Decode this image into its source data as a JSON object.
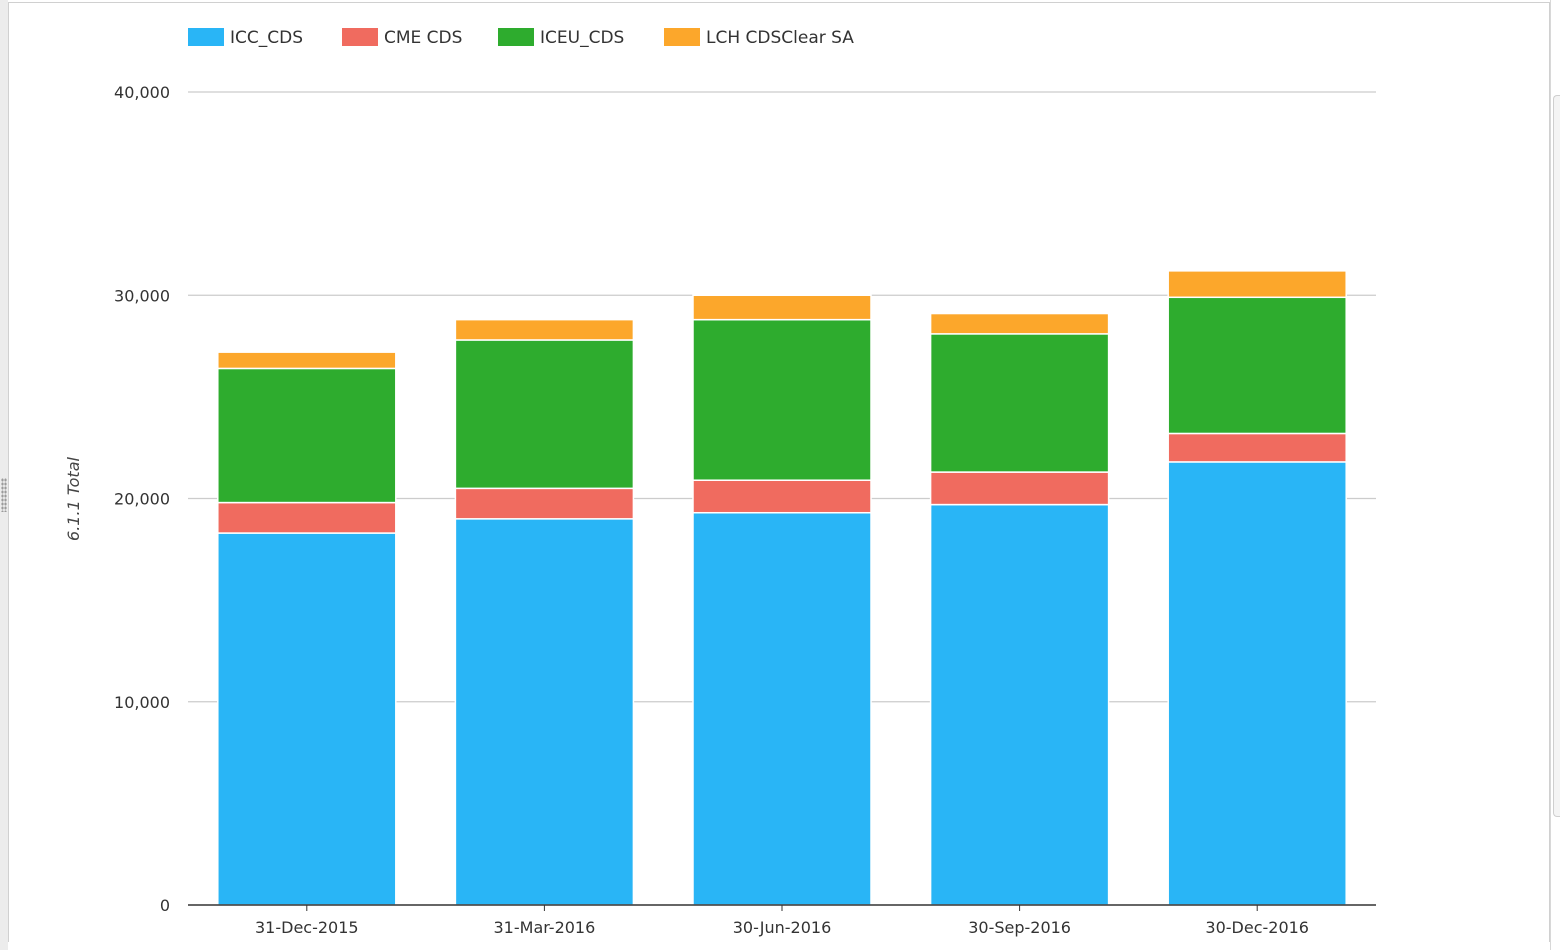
{
  "chart_data": {
    "type": "bar",
    "stacked": true,
    "categories": [
      "31-Dec-2015",
      "31-Mar-2016",
      "30-Jun-2016",
      "30-Sep-2016",
      "30-Dec-2016"
    ],
    "series": [
      {
        "name": "ICC_CDS",
        "color": "#29b5f6",
        "values": [
          18300,
          19000,
          19300,
          19700,
          21800
        ]
      },
      {
        "name": "CME CDS",
        "color": "#f06b5f",
        "values": [
          1500,
          1500,
          1600,
          1600,
          1400
        ]
      },
      {
        "name": "ICEU_CDS",
        "color": "#2eac2e",
        "values": [
          6600,
          7300,
          7900,
          6800,
          6700
        ]
      },
      {
        "name": "LCH CDSClear SA",
        "color": "#fca72b",
        "values": [
          800,
          1000,
          1200,
          1000,
          1300
        ]
      }
    ],
    "ylabel": "6.1.1 Total",
    "ylim": [
      0,
      40000
    ],
    "yticks": [
      "0",
      "10,000",
      "20,000",
      "30,000",
      "40,000"
    ],
    "ytick_values": [
      0,
      10000,
      20000,
      30000,
      40000
    ],
    "grid": true,
    "legend": "top-left"
  }
}
